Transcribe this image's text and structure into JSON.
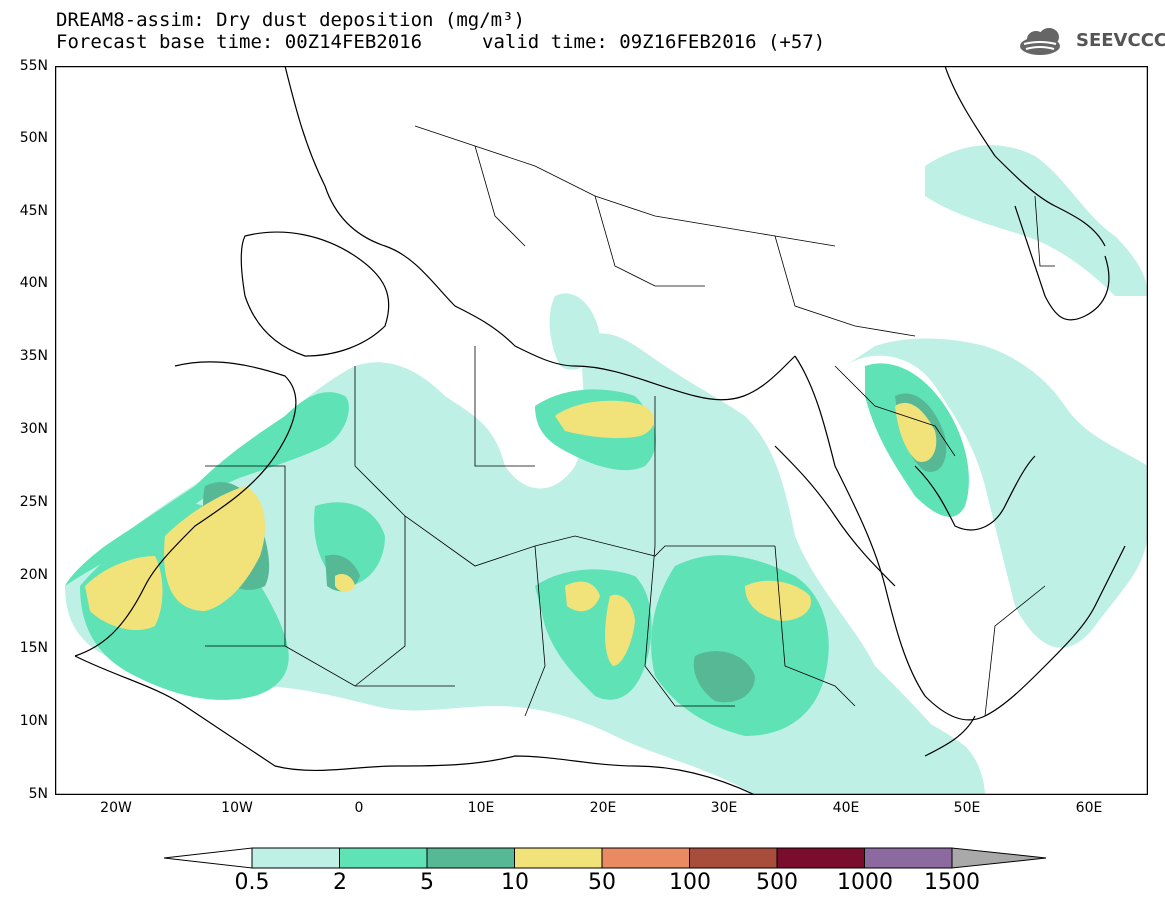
{
  "header": {
    "title_line1": "DREAM8-assim: Dry dust deposition (mg/m³)",
    "title_line2": "Forecast base time: 00Z14FEB2016",
    "valid_time": "valid time: 09Z16FEB2016 (+57)",
    "logo_text": "SEEVCCC"
  },
  "map": {
    "lat_labels": [
      "55N",
      "50N",
      "45N",
      "40N",
      "35N",
      "30N",
      "25N",
      "20N",
      "15N",
      "10N",
      "5N"
    ],
    "lon_labels": [
      "20W",
      "10W",
      "0",
      "10E",
      "20E",
      "30E",
      "40E",
      "50E",
      "60E"
    ],
    "colors": {
      "c05": "#bff0e6",
      "c2": "#5fe3b6",
      "c5": "#57b896",
      "c10": "#f2e27a"
    }
  },
  "colorbar": {
    "labels": [
      "0.5",
      "2",
      "5",
      "10",
      "50",
      "100",
      "500",
      "1000",
      "1500"
    ],
    "colors": [
      "#ffffff",
      "#bff0e6",
      "#5fe3b6",
      "#57b896",
      "#f2e27a",
      "#e98a62",
      "#a84c3c",
      "#7a0c2e",
      "#8c6aa0",
      "#a9a9a9"
    ]
  }
}
